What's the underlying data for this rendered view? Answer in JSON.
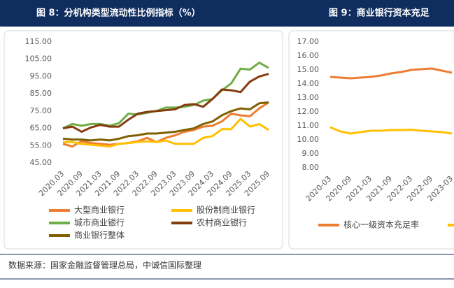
{
  "chart_data": [
    {
      "type": "line",
      "title": "图 8：分机构类型流动性比例指标（%）",
      "categories": [
        "2020.03",
        null,
        "2020.09",
        null,
        "2021.03",
        null,
        "2021.09",
        null,
        "2022.03",
        null,
        "2022.09",
        null,
        "2023.03",
        null,
        "2023.09",
        null,
        "2024.03",
        null,
        "2024.09",
        null,
        "2025.03",
        null,
        "2025.09"
      ],
      "ylim": [
        45,
        115
      ],
      "yticks": [
        {
          "value": 45,
          "label": "45.00"
        },
        {
          "value": 55,
          "label": "55.00"
        },
        {
          "value": 65,
          "label": "65.00"
        },
        {
          "value": 75,
          "label": "75.00"
        },
        {
          "value": 85,
          "label": "85.00"
        },
        {
          "value": 95,
          "label": "95.00"
        },
        {
          "value": 105,
          "label": "105.00"
        },
        {
          "value": 115,
          "label": "115.00"
        }
      ],
      "grid": false,
      "series": [
        {
          "name": "大型商业银行",
          "color": "#ed7d31",
          "values": [
            56,
            54.5,
            57.5,
            56.5,
            56,
            55.5,
            56,
            56.5,
            57.5,
            59.5,
            57,
            59.5,
            61,
            63,
            64,
            66,
            66.5,
            69,
            73.5,
            72.5,
            72,
            76.5,
            80
          ]
        },
        {
          "name": "股份制商业银行",
          "color": "#ffc000",
          "values": [
            57,
            57,
            56,
            55.5,
            55,
            54.5,
            56,
            56.5,
            57,
            57.5,
            57,
            58,
            56,
            56,
            56,
            59.5,
            60.5,
            64.5,
            64.5,
            70.5,
            66,
            67.5,
            64
          ]
        },
        {
          "name": "城市商业银行",
          "color": "#70ad47",
          "values": [
            65,
            67.5,
            66.5,
            67.5,
            67.5,
            66.5,
            68,
            73.5,
            73,
            74,
            75,
            77,
            77,
            77.5,
            78.5,
            81,
            82,
            87,
            91,
            99.5,
            99,
            103,
            100
          ]
        },
        {
          "name": "农村商业银行",
          "color": "#843c0c",
          "values": [
            65,
            66,
            63,
            65.5,
            67,
            66,
            66,
            70,
            73.5,
            74.5,
            75,
            75.5,
            76,
            78.5,
            79,
            77.5,
            82,
            87.5,
            87,
            86,
            92,
            95,
            96.5
          ]
        },
        {
          "name": "商业银行整体",
          "color": "#806000",
          "values": [
            59,
            58.5,
            58.5,
            58,
            58.5,
            58,
            59,
            60.5,
            61,
            62,
            62,
            62.5,
            63,
            64,
            65,
            67.5,
            69,
            72.5,
            75,
            76.5,
            76,
            79.5,
            80
          ]
        }
      ]
    },
    {
      "type": "line",
      "title": "图 9：商业银行资本充足",
      "categories": [
        "2020-03",
        null,
        "2020-09",
        null,
        "2021-03",
        null,
        "2021-09",
        null,
        "2022-03",
        null,
        "2022-09",
        null,
        "2023-03"
      ],
      "ylim": [
        8,
        17
      ],
      "yticks": [
        {
          "value": 8,
          "label": "8.00"
        },
        {
          "value": 9,
          "label": "9.00"
        },
        {
          "value": 10,
          "label": "10.00"
        },
        {
          "value": 11,
          "label": "11.00"
        },
        {
          "value": 12,
          "label": "12.00"
        },
        {
          "value": 13,
          "label": "13.00"
        },
        {
          "value": 14,
          "label": "14.00"
        },
        {
          "value": 15,
          "label": "15.00"
        },
        {
          "value": 16,
          "label": "16.00"
        },
        {
          "value": 17,
          "label": "17.00"
        }
      ],
      "grid": false,
      "series": [
        {
          "name": "核心一级资本充足率",
          "color": "#ed7d31",
          "values": [
            14.5,
            14.45,
            14.4,
            14.45,
            14.5,
            14.6,
            14.75,
            14.85,
            15.0,
            15.05,
            15.1,
            14.95,
            14.8
          ]
        },
        {
          "color": "#ffc000",
          "values": [
            10.9,
            10.6,
            10.45,
            10.55,
            10.65,
            10.65,
            10.7,
            10.7,
            10.72,
            10.65,
            10.6,
            10.55,
            10.45
          ]
        }
      ]
    }
  ],
  "source": "数据来源：国家金融监督管理总局，中诚信国际整理"
}
